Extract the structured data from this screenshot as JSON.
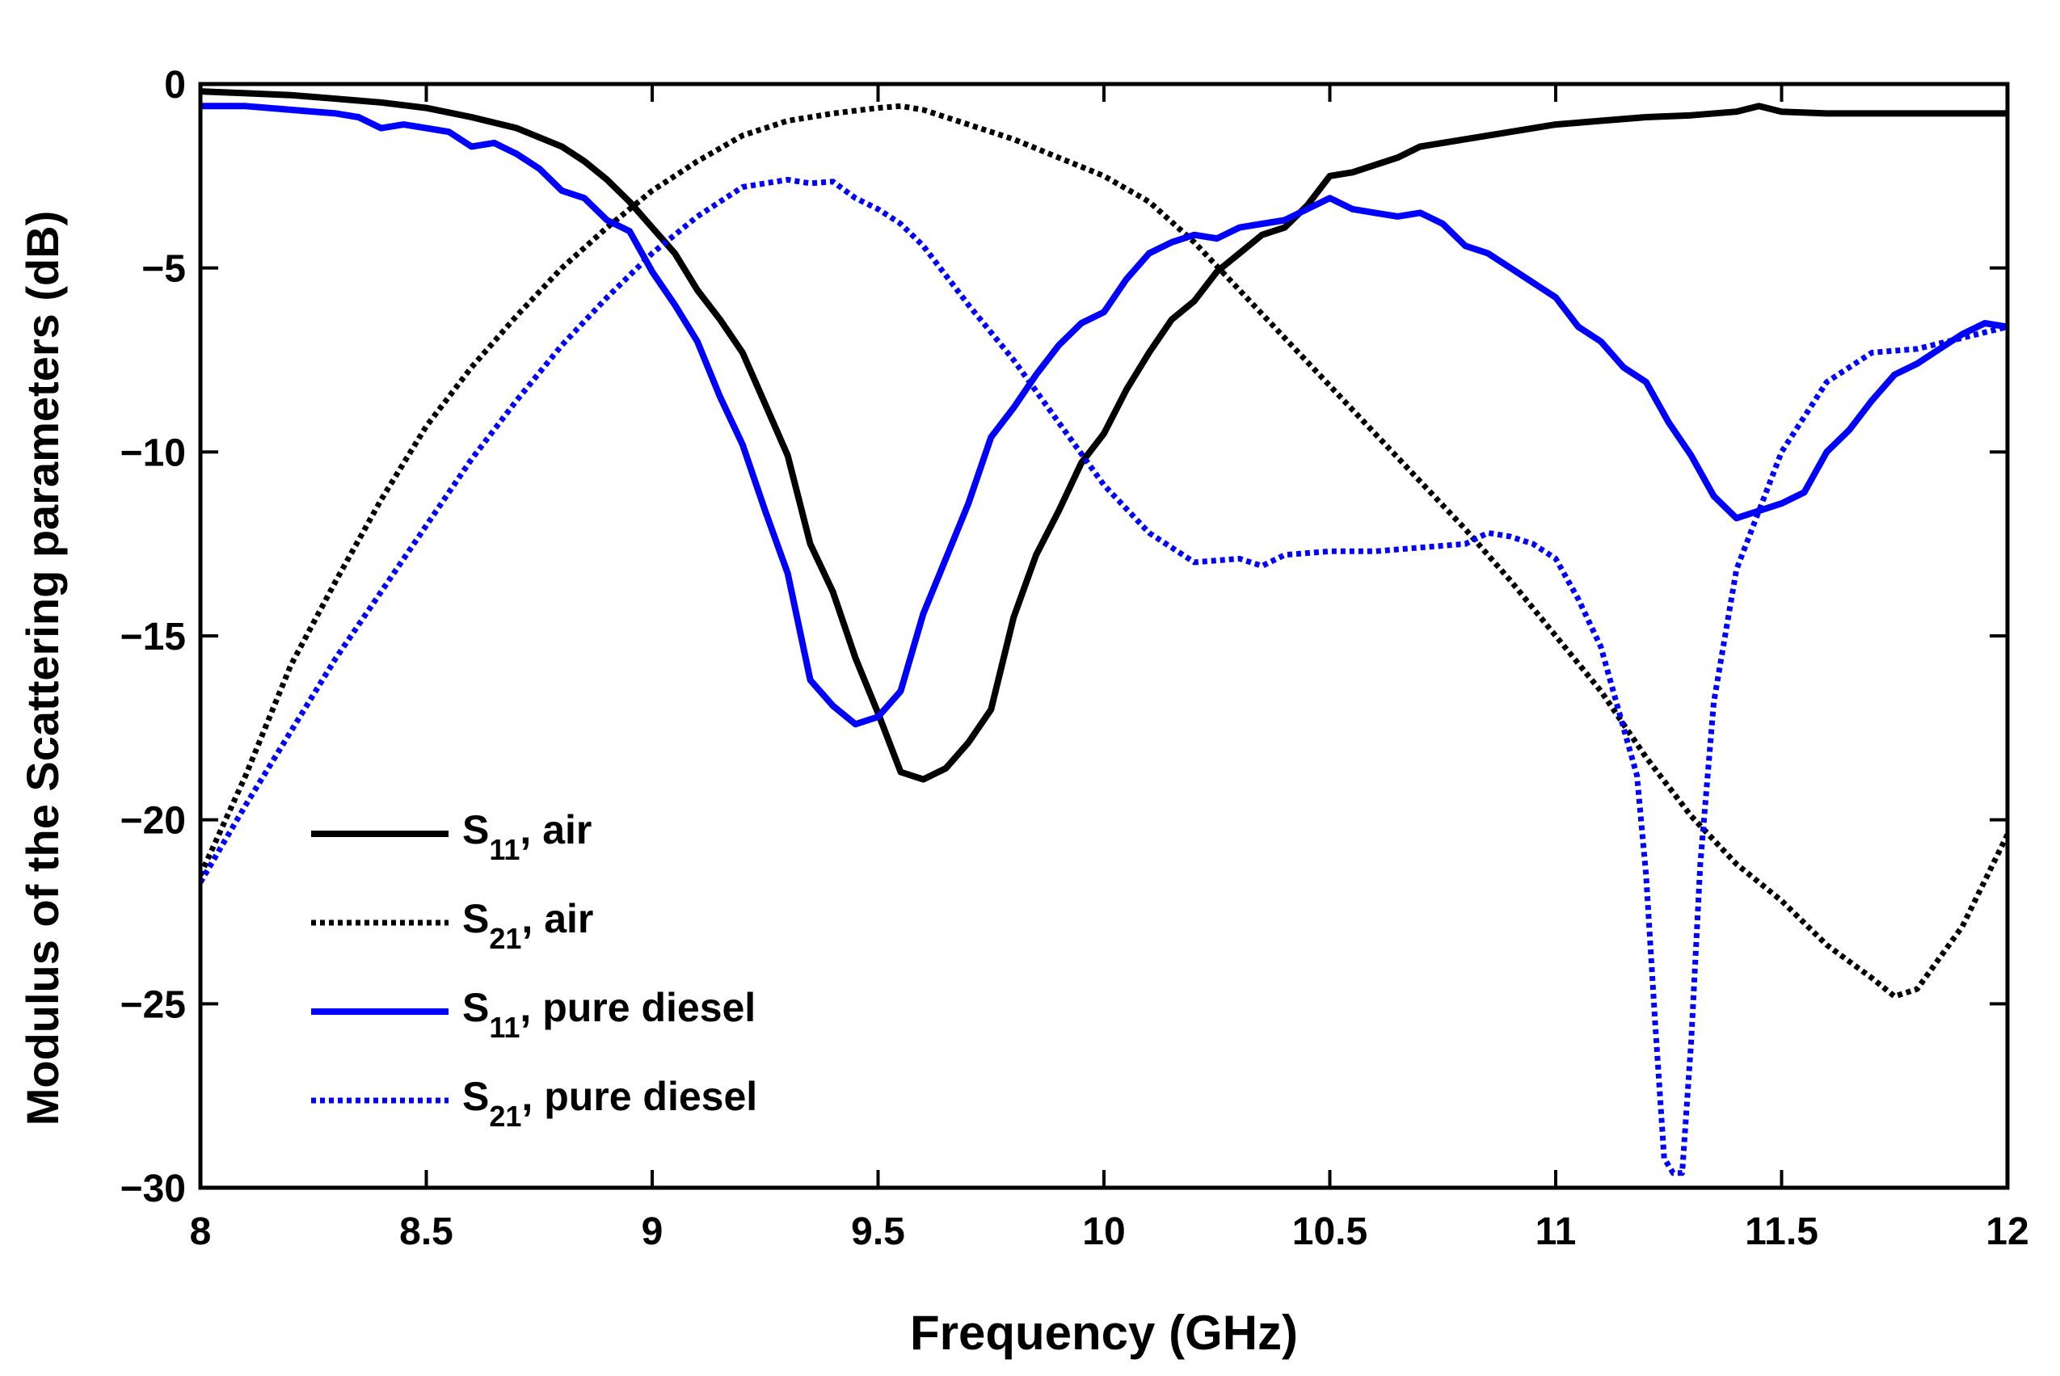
{
  "chart_data": {
    "type": "line",
    "title": "",
    "xlabel": "Frequency (GHz)",
    "ylabel": "Modulus of the Scattering parameters (dB)",
    "xlim": [
      8,
      12
    ],
    "ylim": [
      -30,
      0
    ],
    "xticks": [
      8,
      8.5,
      9,
      9.5,
      10,
      10.5,
      11,
      11.5,
      12
    ],
    "xtick_labels": [
      "8",
      "8.5",
      "9",
      "9.5",
      "10",
      "10.5",
      "11",
      "11.5",
      "12"
    ],
    "yticks": [
      0,
      -5,
      -10,
      -15,
      -20,
      -25,
      -30
    ],
    "ytick_labels": [
      "0",
      "−5",
      "−10",
      "−15",
      "−20",
      "−25",
      "−30"
    ],
    "legend_position": "bottom-left",
    "series": [
      {
        "name": "S11, air",
        "label_main": "S",
        "label_sub": "11",
        "label_rest": ", air",
        "color": "#000000",
        "style": "solid",
        "x": [
          8.0,
          8.1,
          8.2,
          8.3,
          8.4,
          8.5,
          8.6,
          8.7,
          8.8,
          8.85,
          8.9,
          8.95,
          9.0,
          9.05,
          9.1,
          9.15,
          9.2,
          9.25,
          9.3,
          9.35,
          9.4,
          9.45,
          9.5,
          9.55,
          9.6,
          9.65,
          9.7,
          9.75,
          9.8,
          9.85,
          9.9,
          9.95,
          10.0,
          10.05,
          10.1,
          10.15,
          10.2,
          10.25,
          10.3,
          10.35,
          10.4,
          10.45,
          10.5,
          10.55,
          10.6,
          10.65,
          10.7,
          10.8,
          10.9,
          11.0,
          11.1,
          11.2,
          11.3,
          11.4,
          11.45,
          11.5,
          11.6,
          11.7,
          11.8,
          11.9,
          12.0
        ],
        "y": [
          -0.2,
          -0.25,
          -0.3,
          -0.4,
          -0.5,
          -0.65,
          -0.9,
          -1.2,
          -1.7,
          -2.1,
          -2.6,
          -3.2,
          -3.9,
          -4.6,
          -5.6,
          -6.4,
          -7.3,
          -8.7,
          -10.1,
          -12.5,
          -13.8,
          -15.6,
          -17.1,
          -18.7,
          -18.9,
          -18.6,
          -17.9,
          -17.0,
          -14.5,
          -12.8,
          -11.6,
          -10.3,
          -9.5,
          -8.3,
          -7.3,
          -6.4,
          -5.9,
          -5.1,
          -4.6,
          -4.1,
          -3.9,
          -3.3,
          -2.5,
          -2.4,
          -2.2,
          -2.0,
          -1.7,
          -1.5,
          -1.3,
          -1.1,
          -1.0,
          -0.9,
          -0.85,
          -0.75,
          -0.6,
          -0.75,
          -0.8,
          -0.8,
          -0.8,
          -0.8,
          -0.8
        ]
      },
      {
        "name": "S21, air",
        "label_main": "S",
        "label_sub": "21",
        "label_rest": ", air",
        "color": "#000000",
        "style": "dotted",
        "x": [
          8.0,
          8.1,
          8.2,
          8.3,
          8.4,
          8.5,
          8.6,
          8.7,
          8.8,
          8.9,
          9.0,
          9.1,
          9.2,
          9.3,
          9.4,
          9.5,
          9.55,
          9.6,
          9.7,
          9.8,
          9.9,
          10.0,
          10.1,
          10.2,
          10.3,
          10.4,
          10.5,
          10.6,
          10.7,
          10.8,
          10.9,
          11.0,
          11.1,
          11.2,
          11.3,
          11.4,
          11.5,
          11.6,
          11.7,
          11.75,
          11.8,
          11.9,
          12.0
        ],
        "y": [
          -21.5,
          -18.8,
          -15.8,
          -13.5,
          -11.3,
          -9.3,
          -7.7,
          -6.3,
          -5.0,
          -3.9,
          -2.9,
          -2.1,
          -1.4,
          -1.0,
          -0.8,
          -0.65,
          -0.6,
          -0.7,
          -1.1,
          -1.5,
          -2.0,
          -2.5,
          -3.2,
          -4.3,
          -5.6,
          -6.9,
          -8.2,
          -9.5,
          -10.8,
          -12.1,
          -13.5,
          -15.0,
          -16.5,
          -18.3,
          -19.9,
          -21.2,
          -22.2,
          -23.4,
          -24.3,
          -24.8,
          -24.6,
          -22.9,
          -20.4
        ]
      },
      {
        "name": "S11, pure diesel",
        "label_main": "S",
        "label_sub": "11",
        "label_rest": ", pure diesel",
        "color": "#0000ff",
        "style": "solid",
        "x": [
          8.0,
          8.1,
          8.2,
          8.3,
          8.35,
          8.4,
          8.45,
          8.5,
          8.55,
          8.6,
          8.65,
          8.7,
          8.75,
          8.8,
          8.85,
          8.9,
          8.95,
          9.0,
          9.05,
          9.1,
          9.15,
          9.2,
          9.25,
          9.3,
          9.35,
          9.4,
          9.45,
          9.5,
          9.55,
          9.6,
          9.65,
          9.7,
          9.75,
          9.8,
          9.85,
          9.9,
          9.95,
          10.0,
          10.05,
          10.1,
          10.15,
          10.2,
          10.25,
          10.3,
          10.35,
          10.4,
          10.45,
          10.5,
          10.55,
          10.6,
          10.65,
          10.7,
          10.75,
          10.8,
          10.85,
          10.9,
          10.95,
          11.0,
          11.05,
          11.1,
          11.15,
          11.2,
          11.25,
          11.3,
          11.35,
          11.4,
          11.45,
          11.5,
          11.55,
          11.6,
          11.65,
          11.7,
          11.75,
          11.8,
          11.85,
          11.9,
          11.95,
          12.0
        ],
        "y": [
          -0.6,
          -0.6,
          -0.7,
          -0.8,
          -0.9,
          -1.2,
          -1.1,
          -1.2,
          -1.3,
          -1.7,
          -1.6,
          -1.9,
          -2.3,
          -2.9,
          -3.1,
          -3.7,
          -4.0,
          -5.1,
          -6.0,
          -7.0,
          -8.5,
          -9.8,
          -11.6,
          -13.3,
          -16.2,
          -16.9,
          -17.4,
          -17.2,
          -16.5,
          -14.4,
          -12.9,
          -11.4,
          -9.6,
          -8.8,
          -7.9,
          -7.1,
          -6.5,
          -6.2,
          -5.3,
          -4.6,
          -4.3,
          -4.1,
          -4.2,
          -3.9,
          -3.8,
          -3.7,
          -3.4,
          -3.1,
          -3.4,
          -3.5,
          -3.6,
          -3.5,
          -3.8,
          -4.4,
          -4.6,
          -5.0,
          -5.4,
          -5.8,
          -6.6,
          -7.0,
          -7.7,
          -8.1,
          -9.2,
          -10.1,
          -11.2,
          -11.8,
          -11.6,
          -11.4,
          -11.1,
          -10.0,
          -9.4,
          -8.6,
          -7.9,
          -7.6,
          -7.2,
          -6.8,
          -6.5,
          -6.6
        ]
      },
      {
        "name": "S21, pure diesel",
        "label_main": "S",
        "label_sub": "21",
        "label_rest": ", pure diesel",
        "color": "#0000ff",
        "style": "dotted",
        "x": [
          8.0,
          8.1,
          8.2,
          8.3,
          8.4,
          8.5,
          8.6,
          8.7,
          8.8,
          8.9,
          9.0,
          9.1,
          9.2,
          9.25,
          9.3,
          9.35,
          9.4,
          9.45,
          9.5,
          9.55,
          9.6,
          9.7,
          9.8,
          9.9,
          10.0,
          10.1,
          10.2,
          10.3,
          10.35,
          10.4,
          10.5,
          10.6,
          10.7,
          10.8,
          10.85,
          10.9,
          10.95,
          11.0,
          11.05,
          11.1,
          11.15,
          11.18,
          11.2,
          11.22,
          11.24,
          11.26,
          11.28,
          11.3,
          11.32,
          11.35,
          11.4,
          11.45,
          11.5,
          11.6,
          11.7,
          11.8,
          11.9,
          12.0
        ],
        "y": [
          -21.7,
          -19.6,
          -17.6,
          -15.6,
          -13.8,
          -12.0,
          -10.2,
          -8.6,
          -7.1,
          -5.8,
          -4.6,
          -3.6,
          -2.8,
          -2.7,
          -2.6,
          -2.7,
          -2.65,
          -3.1,
          -3.4,
          -3.8,
          -4.4,
          -6.0,
          -7.5,
          -9.2,
          -10.9,
          -12.2,
          -13.0,
          -12.9,
          -13.1,
          -12.8,
          -12.7,
          -12.7,
          -12.6,
          -12.5,
          -12.2,
          -12.3,
          -12.5,
          -12.9,
          -14.0,
          -15.3,
          -17.5,
          -18.8,
          -21.5,
          -25.5,
          -29.2,
          -29.6,
          -29.6,
          -26.0,
          -21.2,
          -16.8,
          -13.2,
          -11.6,
          -10.0,
          -8.1,
          -7.3,
          -7.2,
          -6.9,
          -6.6
        ]
      }
    ]
  }
}
